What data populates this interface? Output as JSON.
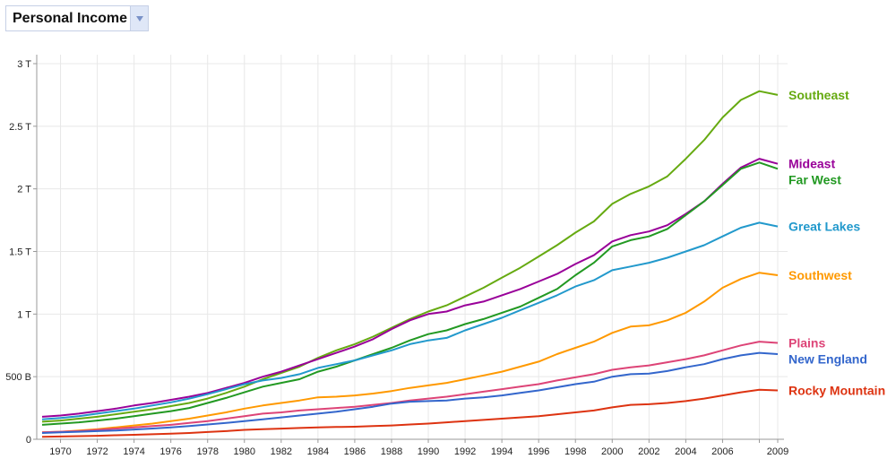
{
  "selector": {
    "label": "Personal Income"
  },
  "chart_data": {
    "type": "line",
    "title": "Personal Income",
    "xlabel": "",
    "ylabel": "",
    "x": [
      1969,
      1970,
      1971,
      1972,
      1973,
      1974,
      1975,
      1976,
      1977,
      1978,
      1979,
      1980,
      1981,
      1982,
      1983,
      1984,
      1985,
      1986,
      1987,
      1988,
      1989,
      1990,
      1991,
      1992,
      1993,
      1994,
      1995,
      1996,
      1997,
      1998,
      1999,
      2000,
      2001,
      2002,
      2003,
      2004,
      2005,
      2006,
      2007,
      2008,
      2009
    ],
    "xlim": [
      1969,
      2009
    ],
    "ylim": [
      0,
      3000
    ],
    "y_unit": "billions",
    "x_tick_labels": [
      "1970",
      "1972",
      "1974",
      "1976",
      "1978",
      "1980",
      "1982",
      "1984",
      "1986",
      "1988",
      "1990",
      "1992",
      "1994",
      "1996",
      "1998",
      "2000",
      "2002",
      "2004",
      "2006",
      "2009"
    ],
    "y_tick_labels": [
      {
        "value": 0,
        "label": "0"
      },
      {
        "value": 500,
        "label": "500 B"
      },
      {
        "value": 1000,
        "label": "1 T"
      },
      {
        "value": 1500,
        "label": "1.5 T"
      },
      {
        "value": 2000,
        "label": "2 T"
      },
      {
        "value": 2500,
        "label": "2.5 T"
      },
      {
        "value": 3000,
        "label": "3 T"
      }
    ],
    "grid": true,
    "legend": "right (inline labels at line ends)",
    "series": [
      {
        "name": "Southeast",
        "color": "#66aa11",
        "values": [
          140,
          150,
          165,
          180,
          200,
          220,
          240,
          265,
          290,
          325,
          370,
          420,
          480,
          530,
          580,
          650,
          710,
          760,
          820,
          890,
          960,
          1020,
          1070,
          1140,
          1210,
          1290,
          1370,
          1460,
          1550,
          1650,
          1740,
          1880,
          1960,
          2020,
          2100,
          2240,
          2390,
          2570,
          2710,
          2780,
          2750
        ]
      },
      {
        "name": "Mideast",
        "color": "#990099",
        "values": [
          180,
          190,
          205,
          225,
          245,
          270,
          290,
          315,
          340,
          370,
          410,
          450,
          500,
          540,
          590,
          640,
          690,
          740,
          800,
          880,
          950,
          1000,
          1020,
          1070,
          1100,
          1150,
          1200,
          1260,
          1320,
          1400,
          1470,
          1580,
          1630,
          1660,
          1710,
          1800,
          1900,
          2040,
          2170,
          2240,
          2200
        ]
      },
      {
        "name": "Far West",
        "color": "#229922",
        "values": [
          115,
          125,
          135,
          150,
          165,
          185,
          205,
          225,
          250,
          290,
          330,
          375,
          420,
          450,
          480,
          540,
          580,
          630,
          680,
          730,
          790,
          840,
          870,
          920,
          960,
          1010,
          1060,
          1130,
          1200,
          1310,
          1410,
          1540,
          1590,
          1620,
          1680,
          1790,
          1900,
          2030,
          2160,
          2210,
          2160
        ]
      },
      {
        "name": "Great Lakes",
        "color": "#2299cc",
        "values": [
          160,
          170,
          185,
          205,
          225,
          245,
          270,
          295,
          325,
          360,
          400,
          440,
          470,
          490,
          520,
          570,
          600,
          630,
          670,
          710,
          760,
          790,
          810,
          870,
          920,
          970,
          1030,
          1090,
          1150,
          1220,
          1270,
          1350,
          1380,
          1410,
          1450,
          1500,
          1550,
          1620,
          1690,
          1730,
          1700
        ]
      },
      {
        "name": "Southwest",
        "color": "#ff9900",
        "values": [
          55,
          60,
          70,
          80,
          95,
          110,
          125,
          145,
          165,
          190,
          215,
          245,
          270,
          290,
          310,
          335,
          340,
          350,
          365,
          385,
          410,
          430,
          450,
          480,
          510,
          540,
          580,
          620,
          680,
          730,
          780,
          850,
          900,
          910,
          950,
          1010,
          1100,
          1210,
          1280,
          1330,
          1310
        ]
      },
      {
        "name": "Plains",
        "color": "#dd4477",
        "values": [
          55,
          60,
          65,
          75,
          85,
          95,
          105,
          115,
          130,
          145,
          165,
          185,
          205,
          215,
          230,
          240,
          250,
          260,
          275,
          290,
          310,
          325,
          340,
          360,
          380,
          400,
          420,
          440,
          470,
          495,
          520,
          555,
          575,
          590,
          615,
          640,
          670,
          710,
          750,
          780,
          770
        ]
      },
      {
        "name": "New England",
        "color": "#3366cc",
        "values": [
          50,
          55,
          60,
          65,
          70,
          78,
          86,
          95,
          105,
          118,
          130,
          145,
          160,
          175,
          190,
          205,
          220,
          240,
          260,
          285,
          300,
          305,
          310,
          325,
          335,
          350,
          370,
          390,
          415,
          440,
          460,
          500,
          520,
          525,
          545,
          575,
          600,
          640,
          670,
          690,
          680
        ]
      },
      {
        "name": "Rocky Mountain",
        "color": "#dd3311",
        "values": [
          20,
          22,
          25,
          28,
          32,
          36,
          40,
          45,
          50,
          58,
          65,
          75,
          80,
          85,
          90,
          95,
          98,
          100,
          105,
          110,
          118,
          125,
          135,
          145,
          155,
          165,
          175,
          185,
          200,
          215,
          230,
          255,
          275,
          280,
          290,
          305,
          325,
          350,
          375,
          395,
          390
        ]
      }
    ]
  }
}
